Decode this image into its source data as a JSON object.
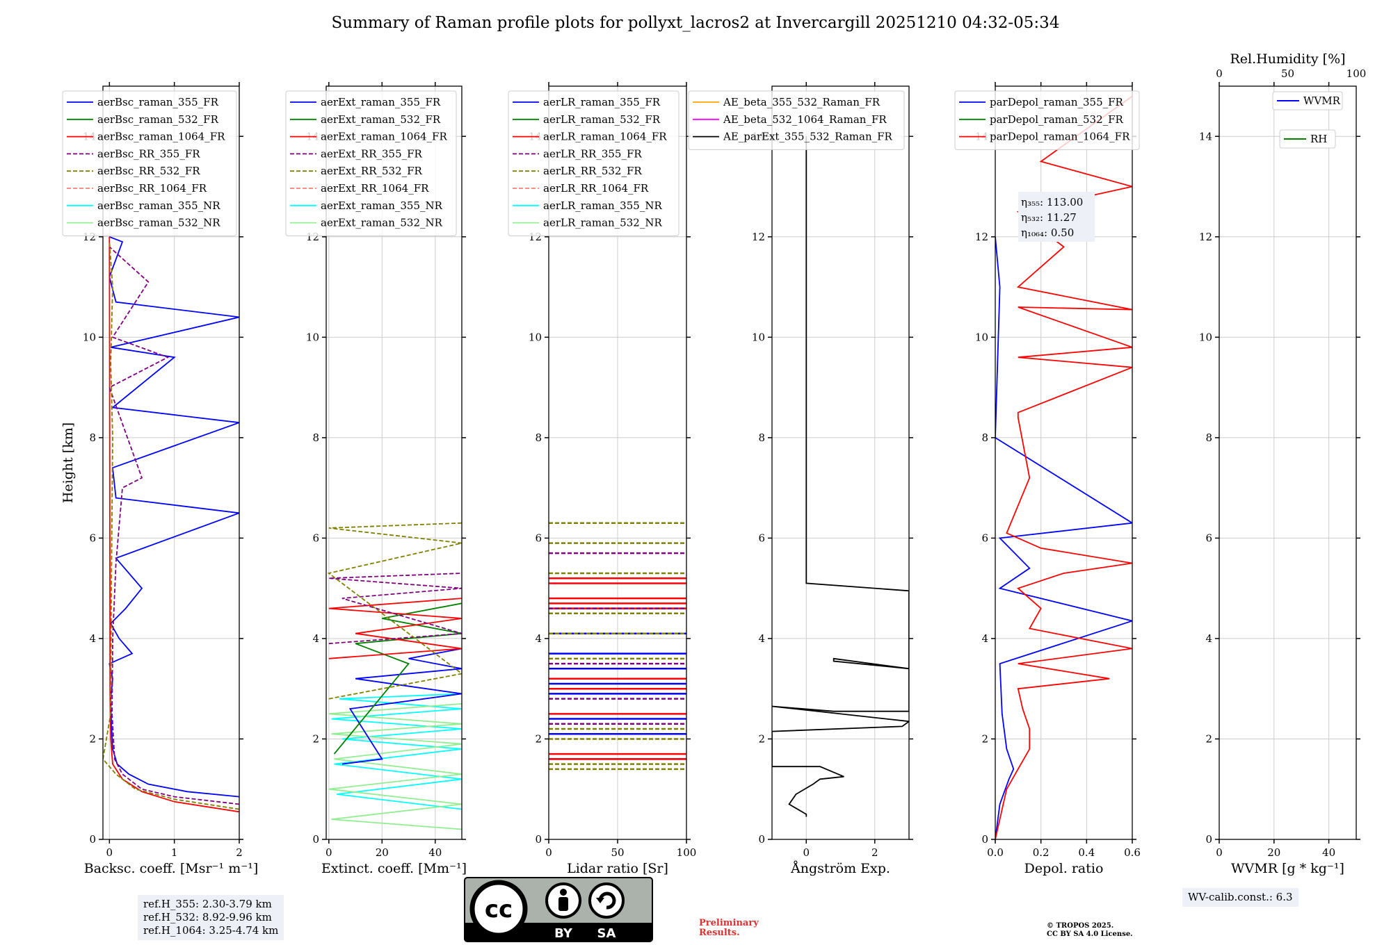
{
  "title": "Summary of Raman profile plots for pollyxt_lacros2 at Invercargill 20251210 04:32-05:34",
  "y_axis_label": "Height [km]",
  "colors": {
    "blue": "#0000ff",
    "green": "#008000",
    "red": "#ff0000",
    "purple": "#800080",
    "olive": "#808000",
    "salmon": "#fa8072",
    "cyan": "#00ffff",
    "lightgreen": "#90ee90",
    "orange": "#ffa500",
    "magenta": "#ff00ff",
    "black": "#000000"
  },
  "chart_data": [
    {
      "type": "line",
      "panel": "backscatter",
      "xlabel": "Backsc. coeff. [Msr⁻¹ m⁻¹]",
      "ylabel": "Height [km]",
      "xlim": [
        -0.1,
        2
      ],
      "ylim": [
        0,
        15
      ],
      "xticks": [
        "0",
        "1",
        "2"
      ],
      "xtick_values": [
        0,
        1,
        2
      ],
      "yticks": [
        "0",
        "2",
        "4",
        "6",
        "8",
        "10",
        "12",
        "14"
      ],
      "ytick_values": [
        0,
        2,
        4,
        6,
        8,
        10,
        12,
        14
      ],
      "legend": [
        {
          "name": "aerBsc_raman_355_FR",
          "color": "blue",
          "dash": false
        },
        {
          "name": "aerBsc_raman_532_FR",
          "color": "green",
          "dash": false
        },
        {
          "name": "aerBsc_raman_1064_FR",
          "color": "red",
          "dash": false
        },
        {
          "name": "aerBsc_RR_355_FR",
          "color": "purple",
          "dash": true
        },
        {
          "name": "aerBsc_RR_532_FR",
          "color": "olive",
          "dash": true
        },
        {
          "name": "aerBsc_RR_1064_FR",
          "color": "salmon",
          "dash": true
        },
        {
          "name": "aerBsc_raman_355_NR",
          "color": "cyan",
          "dash": false
        },
        {
          "name": "aerBsc_raman_532_NR",
          "color": "lightgreen",
          "dash": false
        }
      ],
      "series": [
        {
          "name": "aerBsc_raman_355_FR",
          "color": "blue",
          "dash": false,
          "x": [
            2.0,
            1.2,
            0.6,
            0.3,
            0.12,
            0.05,
            0.03,
            0.02,
            0.05,
            0.0,
            0.35,
            0.15,
            0.02,
            0.25,
            0.5,
            0.1,
            2.0,
            0.1,
            0.05,
            2.0,
            0.05,
            1.0,
            0.02,
            2.0,
            0.1,
            0.0,
            0.2,
            0.0
          ],
          "y": [
            0.85,
            0.95,
            1.1,
            1.3,
            1.5,
            1.8,
            2.3,
            2.8,
            3.2,
            3.5,
            3.7,
            4.0,
            4.3,
            4.6,
            5.0,
            5.6,
            6.5,
            6.8,
            7.4,
            8.3,
            8.6,
            9.6,
            9.8,
            10.4,
            10.7,
            11.2,
            11.9,
            12.0
          ]
        },
        {
          "name": "aerBsc_raman_1064_FR",
          "color": "red",
          "dash": false,
          "x": [
            2.0,
            1.0,
            0.5,
            0.2,
            0.05,
            0.02,
            0.01,
            0.0
          ],
          "y": [
            0.55,
            0.75,
            0.95,
            1.2,
            1.5,
            2.0,
            3.0,
            12.0
          ]
        },
        {
          "name": "aerBsc_RR_355_FR",
          "color": "purple",
          "dash": true,
          "x": [
            2.0,
            1.0,
            0.5,
            0.2,
            0.08,
            0.04,
            0.05,
            0.1,
            0.2,
            0.5,
            0.0,
            0.9,
            0.05,
            0.6,
            0.0
          ],
          "y": [
            0.7,
            0.85,
            1.0,
            1.3,
            1.6,
            2.5,
            4.0,
            5.5,
            7.0,
            7.2,
            9.0,
            9.6,
            10.0,
            11.1,
            11.8
          ]
        },
        {
          "name": "aerBsc_RR_532_FR",
          "color": "olive",
          "dash": true,
          "x": [
            2.0,
            1.0,
            0.4,
            0.1,
            -0.1,
            0.02,
            0.03,
            0.05,
            0.02,
            0.05,
            0.0
          ],
          "y": [
            0.6,
            0.8,
            1.0,
            1.3,
            1.6,
            2.5,
            5.0,
            8.0,
            9.5,
            11.0,
            11.9
          ]
        }
      ]
    },
    {
      "type": "line",
      "panel": "extinction",
      "xlabel": "Extinct. coeff. [Mm⁻¹]",
      "xlim": [
        -1,
        50
      ],
      "ylim": [
        0,
        15
      ],
      "xticks": [
        "0",
        "20",
        "40"
      ],
      "xtick_values": [
        0,
        20,
        40
      ],
      "yticks": [
        "0",
        "2",
        "4",
        "6",
        "8",
        "10",
        "12",
        "14"
      ],
      "ytick_values": [
        0,
        2,
        4,
        6,
        8,
        10,
        12,
        14
      ],
      "legend": [
        {
          "name": "aerExt_raman_355_FR",
          "color": "blue",
          "dash": false
        },
        {
          "name": "aerExt_raman_532_FR",
          "color": "green",
          "dash": false
        },
        {
          "name": "aerExt_raman_1064_FR",
          "color": "red",
          "dash": false
        },
        {
          "name": "aerExt_RR_355_FR",
          "color": "purple",
          "dash": true
        },
        {
          "name": "aerExt_RR_532_FR",
          "color": "olive",
          "dash": true
        },
        {
          "name": "aerExt_RR_1064_FR",
          "color": "salmon",
          "dash": true
        },
        {
          "name": "aerExt_raman_355_NR",
          "color": "cyan",
          "dash": false
        },
        {
          "name": "aerExt_raman_532_NR",
          "color": "lightgreen",
          "dash": false
        }
      ],
      "series": [
        {
          "name": "aerExt_raman_355_NR",
          "color": "cyan",
          "dash": false,
          "x": [
            50,
            3,
            50,
            2,
            50,
            5,
            50,
            1,
            50,
            4,
            50
          ],
          "y": [
            0.6,
            0.9,
            1.2,
            1.5,
            1.8,
            2.0,
            2.2,
            2.4,
            2.6,
            2.8,
            2.9
          ]
        },
        {
          "name": "aerExt_raman_532_NR",
          "color": "lightgreen",
          "dash": false,
          "x": [
            50,
            1,
            50,
            0,
            50,
            2,
            50,
            1,
            50,
            0,
            50
          ],
          "y": [
            0.2,
            0.4,
            0.7,
            1.0,
            1.3,
            1.6,
            1.9,
            2.1,
            2.3,
            2.5,
            2.7
          ]
        },
        {
          "name": "aerExt_raman_355_FR",
          "color": "blue",
          "dash": false,
          "x": [
            5,
            20,
            8,
            50,
            10,
            50,
            30,
            50
          ],
          "y": [
            1.5,
            1.6,
            2.6,
            2.9,
            3.2,
            3.4,
            3.6,
            3.8
          ]
        },
        {
          "name": "aerExt_raman_532_FR",
          "color": "green",
          "dash": false,
          "x": [
            2,
            30,
            10,
            50,
            20,
            50
          ],
          "y": [
            1.7,
            3.5,
            3.9,
            4.1,
            4.4,
            4.7
          ]
        },
        {
          "name": "aerExt_raman_1064_FR",
          "color": "red",
          "dash": false,
          "x": [
            0,
            50,
            10,
            50,
            0,
            50
          ],
          "y": [
            3.6,
            3.8,
            4.1,
            4.4,
            4.6,
            4.8
          ]
        },
        {
          "name": "aerExt_RR_355_FR",
          "color": "purple",
          "dash": true,
          "x": [
            0,
            50,
            5,
            50,
            0,
            50
          ],
          "y": [
            3.9,
            4.1,
            4.8,
            5.0,
            5.2,
            5.3
          ]
        },
        {
          "name": "aerExt_RR_532_FR",
          "color": "olive",
          "dash": true,
          "x": [
            0,
            50,
            0,
            50,
            0,
            50
          ],
          "y": [
            2.8,
            3.3,
            5.3,
            5.9,
            6.2,
            6.3
          ]
        }
      ]
    },
    {
      "type": "line",
      "panel": "lidar_ratio",
      "xlabel": "Lidar ratio [Sr]",
      "xlim": [
        0,
        100
      ],
      "ylim": [
        0,
        15
      ],
      "xticks": [
        "0",
        "50",
        "100"
      ],
      "xtick_values": [
        0,
        50,
        100
      ],
      "yticks": [
        "0",
        "2",
        "4",
        "6",
        "8",
        "10",
        "12",
        "14"
      ],
      "ytick_values": [
        0,
        2,
        4,
        6,
        8,
        10,
        12,
        14
      ],
      "legend": [
        {
          "name": "aerLR_raman_355_FR",
          "color": "blue",
          "dash": false
        },
        {
          "name": "aerLR_raman_532_FR",
          "color": "green",
          "dash": false
        },
        {
          "name": "aerLR_raman_1064_FR",
          "color": "red",
          "dash": false
        },
        {
          "name": "aerLR_RR_355_FR",
          "color": "purple",
          "dash": true
        },
        {
          "name": "aerLR_RR_532_FR",
          "color": "olive",
          "dash": true
        },
        {
          "name": "aerLR_RR_1064_FR",
          "color": "salmon",
          "dash": true
        },
        {
          "name": "aerLR_raman_355_NR",
          "color": "cyan",
          "dash": false
        },
        {
          "name": "aerLR_raman_532_NR",
          "color": "lightgreen",
          "dash": false
        }
      ],
      "series": [
        {
          "name": "aerLR_raman_355_FR",
          "color": "blue",
          "dash": false,
          "y_levels": [
            1.6,
            2.1,
            2.4,
            2.9,
            3.1,
            3.4,
            3.7,
            4.1,
            5.2
          ]
        },
        {
          "name": "aerLR_raman_1064_FR",
          "color": "red",
          "dash": false,
          "y_levels": [
            1.6,
            1.7,
            2.5,
            3.0,
            3.2,
            4.6,
            4.7,
            4.8,
            5.1,
            5.2
          ]
        },
        {
          "name": "aerLR_RR_355_FR",
          "color": "purple",
          "dash": true,
          "y_levels": [
            2.3,
            2.8,
            3.5,
            4.6,
            5.7
          ]
        },
        {
          "name": "aerLR_RR_532_FR",
          "color": "olive",
          "dash": true,
          "y_levels": [
            1.4,
            1.5,
            2.0,
            2.2,
            3.6,
            4.1,
            4.5,
            5.3,
            5.9,
            6.3
          ]
        }
      ]
    },
    {
      "type": "line",
      "panel": "angstrom",
      "xlabel": "Ångström Exp.",
      "xlim": [
        -1,
        3
      ],
      "ylim": [
        0,
        15
      ],
      "xticks": [
        "0",
        "2"
      ],
      "xtick_values": [
        0,
        2
      ],
      "yticks": [
        "0",
        "2",
        "4",
        "6",
        "8",
        "10",
        "12",
        "14"
      ],
      "ytick_values": [
        0,
        2,
        4,
        6,
        8,
        10,
        12,
        14
      ],
      "legend": [
        {
          "name": "AE_beta_355_532_Raman_FR",
          "color": "orange",
          "dash": false
        },
        {
          "name": "AE_beta_532_1064_Raman_FR",
          "color": "magenta",
          "dash": false
        },
        {
          "name": "AE_parExt_355_532_Raman_FR",
          "color": "black",
          "dash": false
        }
      ],
      "series": [
        {
          "name": "AE_parExt_355_532_Raman_FR",
          "color": "black",
          "dash": false,
          "x": [
            0.0,
            0.0,
            -0.5,
            -0.3,
            0.2,
            0.4,
            1.1,
            0.4,
            -1.0,
            -1.0,
            2.8,
            3.0,
            -1.0,
            0.8,
            3.0,
            3.0,
            0.8,
            0.8,
            3.0,
            3.0,
            0.0,
            0.0
          ],
          "y": [
            0.45,
            0.5,
            0.7,
            0.9,
            1.1,
            1.2,
            1.25,
            1.45,
            1.45,
            2.15,
            2.25,
            2.35,
            2.65,
            2.55,
            2.55,
            3.4,
            3.55,
            3.6,
            3.4,
            4.95,
            5.1,
            14.0
          ]
        }
      ]
    },
    {
      "type": "line",
      "panel": "depolarization",
      "xlabel": "Depol. ratio",
      "xlim": [
        0,
        0.6
      ],
      "ylim": [
        0,
        15
      ],
      "xticks": [
        "0.0",
        "0.2",
        "0.4",
        "0.6"
      ],
      "xtick_values": [
        0,
        0.2,
        0.4,
        0.6
      ],
      "yticks": [
        "0",
        "2",
        "4",
        "6",
        "8",
        "10",
        "12",
        "14"
      ],
      "ytick_values": [
        0,
        2,
        4,
        6,
        8,
        10,
        12,
        14
      ],
      "legend": [
        {
          "name": "parDepol_raman_355_FR",
          "color": "blue",
          "dash": false
        },
        {
          "name": "parDepol_raman_532_FR",
          "color": "green",
          "dash": false
        },
        {
          "name": "parDepol_raman_1064_FR",
          "color": "red",
          "dash": false
        }
      ],
      "series": [
        {
          "name": "parDepol_raman_355_FR",
          "color": "blue",
          "dash": false,
          "x": [
            0.0,
            0.02,
            0.06,
            0.08,
            0.05,
            0.03,
            0.02,
            0.6,
            0.02,
            0.15,
            0.02,
            0.6,
            0.0,
            0.02,
            0.0
          ],
          "y": [
            0.0,
            0.7,
            1.2,
            1.4,
            1.8,
            2.5,
            3.5,
            4.35,
            5.0,
            5.4,
            6.0,
            6.3,
            8.0,
            11.0,
            12.0
          ]
        },
        {
          "name": "parDepol_raman_1064_FR",
          "color": "red",
          "dash": false,
          "x": [
            0.0,
            0.05,
            0.1,
            0.15,
            0.15,
            0.12,
            0.1,
            0.5,
            0.1,
            0.6,
            0.15,
            0.2,
            0.1,
            0.3,
            0.6,
            0.2,
            0.05,
            0.15,
            0.1,
            0.1,
            0.6,
            0.1,
            0.6,
            0.1,
            0.6,
            0.1,
            0.3,
            0.1,
            0.6,
            0.2,
            0.6
          ],
          "y": [
            0.0,
            1.0,
            1.4,
            1.8,
            2.2,
            2.6,
            3.0,
            3.2,
            3.5,
            3.8,
            4.2,
            4.6,
            5.0,
            5.3,
            5.5,
            5.8,
            6.1,
            7.2,
            8.4,
            8.5,
            9.4,
            9.6,
            9.8,
            10.6,
            10.55,
            11.0,
            11.8,
            12.5,
            13.0,
            13.5,
            14.8
          ]
        }
      ],
      "annotation": [
        "η₃₅₅: 113.00",
        "η₅₃₂: 11.27",
        "η₁₀₆₄: 0.50"
      ]
    },
    {
      "type": "line",
      "panel": "water_vapor",
      "xlabel": "WVMR [g * kg⁻¹]",
      "top_xlabel": "Rel.Humidity [%]",
      "xlim": [
        0,
        50
      ],
      "ylim": [
        0,
        15
      ],
      "xticks": [
        "0",
        "20",
        "40"
      ],
      "xtick_values": [
        0,
        20,
        40
      ],
      "top_xticks": [
        "0",
        "50",
        "100"
      ],
      "yticks": [
        "0",
        "2",
        "4",
        "6",
        "8",
        "10",
        "12",
        "14"
      ],
      "ytick_values": [
        0,
        2,
        4,
        6,
        8,
        10,
        12,
        14
      ],
      "legend": [
        {
          "name": "WVMR",
          "color": "blue",
          "dash": false
        },
        {
          "name": "RH",
          "color": "green",
          "dash": false
        }
      ],
      "series": []
    }
  ],
  "info_boxes": {
    "ref_heights": "ref.H_355: 2.30-3.79 km\nref.H_532: 8.92-9.96 km\nref.H_1064: 3.25-4.74 km",
    "wv_calib": "WV-calib.const.: 6.3"
  },
  "notes": {
    "preliminary": "Preliminary\nResults.",
    "copyright": "© TROPOS 2025.\nCC BY SA 4.0 License."
  },
  "cc_badge": {
    "cc": "cc",
    "by": "BY",
    "sa": "SA"
  }
}
